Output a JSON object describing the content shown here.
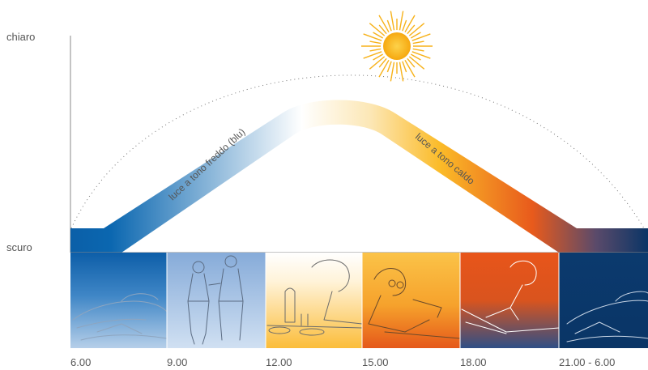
{
  "axis": {
    "top_label": "chiaro",
    "bottom_label": "scuro"
  },
  "band": {
    "cool_label": "luce a tono freddo (blu)",
    "warm_label": "luce a tono caldo"
  },
  "times": [
    "6.00",
    "9.00",
    "12.00",
    "15.00",
    "18.00",
    "21.00 - 6.00"
  ],
  "panels": [
    {
      "scene": "sleeping-icon",
      "color_top": "#1e66ad",
      "color_bottom": "#a7c5e6"
    },
    {
      "scene": "walking-couple-icon",
      "color_top": "#8fb2dc",
      "color_bottom": "#c9dbef"
    },
    {
      "scene": "dining-table-icon",
      "color_top": "#ffffff",
      "color_bottom": "#fbc047"
    },
    {
      "scene": "reading-person-icon",
      "color_top": "#fbc047",
      "color_bottom": "#e8621c"
    },
    {
      "scene": "writing-person-icon",
      "color_top": "#e8551a",
      "color_bottom": "#3b5a8c"
    },
    {
      "scene": "sleeping-icon",
      "color_top": "#0e3f73",
      "color_bottom": "#0a3566"
    }
  ],
  "colors": {
    "cool": "#0b67b0",
    "warm_yellow": "#fbc22c",
    "warm_orange": "#e8541c",
    "night": "#0a3566",
    "sun": "#fbb615"
  }
}
